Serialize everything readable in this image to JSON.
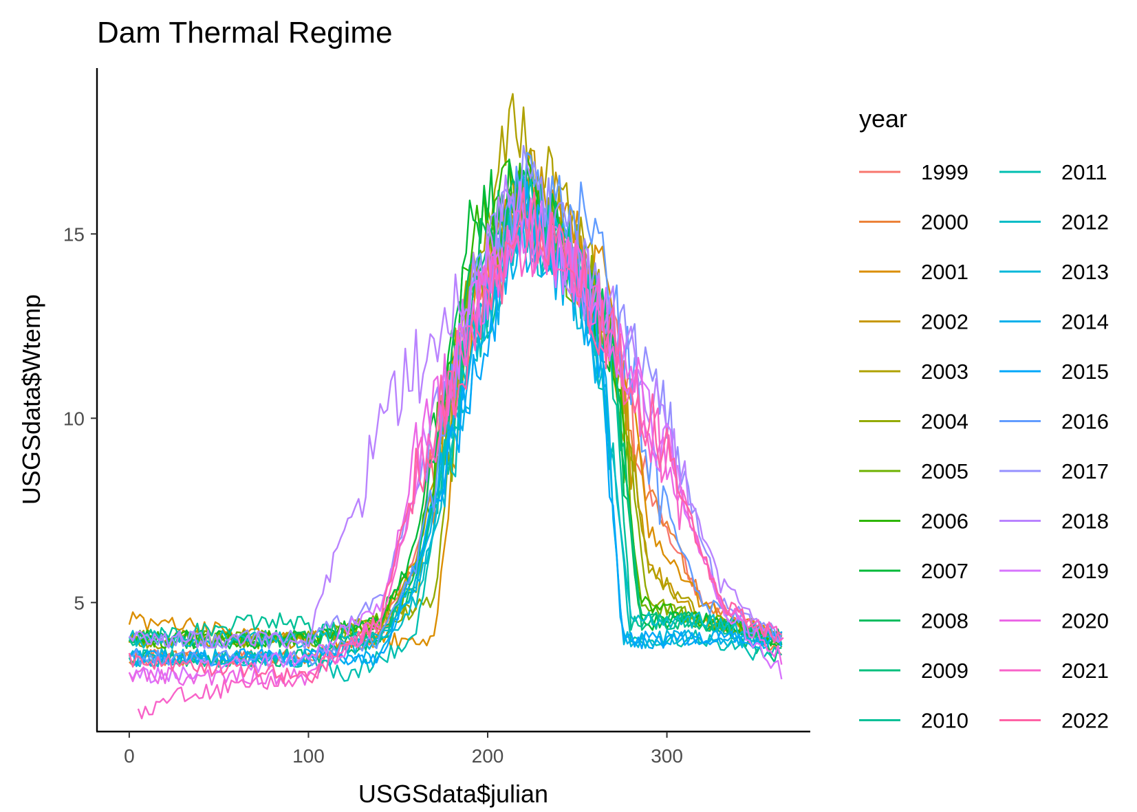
{
  "chart_data": {
    "type": "line",
    "title": "Dam Thermal Regime",
    "xlabel": "USGSdata$julian",
    "ylabel": "USGSdata$Wtemp",
    "xlim": [
      -18,
      380
    ],
    "ylim": [
      1.5,
      19.5
    ],
    "x_ticks": [
      0,
      100,
      200,
      300
    ],
    "y_ticks": [
      5,
      10,
      15
    ],
    "grid": false,
    "legend": {
      "title": "year",
      "placement": "right",
      "columns": 2
    },
    "shape_model": {
      "note_days": [
        0,
        100,
        140,
        160,
        190,
        220,
        250,
        270,
        290,
        340,
        365
      ],
      "note_values": [
        3.5,
        3.5,
        4,
        6,
        13,
        15.5,
        13.5,
        11,
        5,
        4,
        4
      ]
    },
    "series": [
      {
        "name": "1999",
        "color": "#F8766D",
        "x": [
          0,
          100,
          140,
          160,
          190,
          220,
          250,
          270,
          290,
          320,
          365
        ],
        "y": [
          3.5,
          3.5,
          4.0,
          6.5,
          13.0,
          16.0,
          14.0,
          12.0,
          8.0,
          5.0,
          4.0
        ]
      },
      {
        "name": "2000",
        "color": "#EC8239",
        "x": [
          0,
          100,
          140,
          160,
          190,
          220,
          250,
          270,
          290,
          320,
          365
        ],
        "y": [
          3.5,
          3.5,
          4.0,
          6.0,
          12.5,
          15.5,
          14.0,
          12.0,
          8.0,
          5.0,
          3.5
        ]
      },
      {
        "name": "2001",
        "color": "#DB8E00",
        "x": [
          0,
          100,
          140,
          170,
          190,
          220,
          250,
          270,
          290,
          320,
          365
        ],
        "y": [
          4.5,
          4.0,
          4.0,
          4.0,
          12.5,
          16.0,
          15.0,
          13.0,
          7.0,
          5.0,
          4.0
        ]
      },
      {
        "name": "2002",
        "color": "#C79800",
        "x": [
          0,
          100,
          140,
          160,
          190,
          220,
          250,
          270,
          290,
          320,
          365
        ],
        "y": [
          4.0,
          4.0,
          4.5,
          6.0,
          13.5,
          17.0,
          15.0,
          12.0,
          6.0,
          4.5,
          4.0
        ]
      },
      {
        "name": "2003",
        "color": "#AFA100",
        "x": [
          0,
          100,
          140,
          160,
          190,
          215,
          250,
          270,
          290,
          320,
          365
        ],
        "y": [
          4.0,
          4.0,
          4.5,
          5.0,
          14.0,
          18.0,
          15.0,
          12.0,
          6.0,
          4.5,
          4.0
        ]
      },
      {
        "name": "2004",
        "color": "#93AA00",
        "x": [
          0,
          100,
          140,
          170,
          190,
          220,
          250,
          270,
          290,
          320,
          365
        ],
        "y": [
          4.0,
          4.0,
          4.5,
          5.0,
          13.0,
          16.0,
          14.5,
          12.0,
          5.0,
          4.5,
          4.0
        ]
      },
      {
        "name": "2005",
        "color": "#6DB200",
        "x": [
          0,
          100,
          140,
          160,
          190,
          220,
          250,
          270,
          285,
          320,
          365
        ],
        "y": [
          4.0,
          4.0,
          4.5,
          5.5,
          13.5,
          16.0,
          14.0,
          12.0,
          5.0,
          4.5,
          4.0
        ]
      },
      {
        "name": "2006",
        "color": "#2DB600",
        "x": [
          0,
          100,
          140,
          160,
          190,
          215,
          250,
          270,
          285,
          320,
          365
        ],
        "y": [
          4.0,
          4.0,
          4.5,
          6.0,
          14.5,
          16.5,
          14.0,
          12.0,
          5.0,
          4.5,
          4.0
        ]
      },
      {
        "name": "2007",
        "color": "#00BA38",
        "x": [
          0,
          100,
          140,
          160,
          190,
          215,
          250,
          270,
          285,
          320,
          365
        ],
        "y": [
          4.0,
          4.0,
          4.5,
          6.5,
          15.0,
          16.5,
          14.0,
          12.0,
          4.5,
          4.5,
          4.0
        ]
      },
      {
        "name": "2008",
        "color": "#00BD5F",
        "x": [
          0,
          100,
          140,
          160,
          190,
          220,
          250,
          270,
          285,
          320,
          365
        ],
        "y": [
          4.0,
          4.0,
          4.0,
          6.0,
          14.0,
          16.0,
          14.0,
          12.0,
          4.5,
          4.5,
          4.0
        ]
      },
      {
        "name": "2009",
        "color": "#00BF7D",
        "x": [
          0,
          100,
          140,
          160,
          190,
          220,
          250,
          270,
          285,
          320,
          365
        ],
        "y": [
          3.5,
          3.5,
          4.0,
          5.5,
          13.0,
          16.0,
          14.0,
          12.0,
          4.5,
          4.5,
          3.5
        ]
      },
      {
        "name": "2010",
        "color": "#00C097",
        "x": [
          0,
          80,
          140,
          160,
          190,
          220,
          250,
          270,
          280,
          320,
          365
        ],
        "y": [
          4.0,
          4.5,
          4.0,
          5.5,
          12.0,
          15.5,
          14.0,
          11.5,
          4.5,
          4.5,
          4.0
        ]
      },
      {
        "name": "2011",
        "color": "#00BFB0",
        "x": [
          0,
          100,
          120,
          160,
          180,
          220,
          250,
          265,
          280,
          320,
          365
        ],
        "y": [
          3.5,
          3.5,
          3.0,
          4.0,
          10.0,
          16.0,
          14.0,
          11.0,
          4.0,
          4.0,
          3.5
        ]
      },
      {
        "name": "2012",
        "color": "#00BCC6",
        "x": [
          0,
          100,
          140,
          160,
          190,
          220,
          250,
          265,
          280,
          320,
          365
        ],
        "y": [
          4.0,
          4.0,
          4.0,
          5.0,
          11.0,
          15.0,
          14.0,
          11.0,
          4.5,
          4.5,
          4.0
        ]
      },
      {
        "name": "2013",
        "color": "#00B7D9",
        "x": [
          0,
          100,
          140,
          165,
          190,
          220,
          250,
          265,
          275,
          320,
          365
        ],
        "y": [
          3.5,
          3.5,
          4.0,
          6.0,
          12.0,
          16.0,
          13.5,
          11.0,
          4.0,
          4.0,
          4.0
        ]
      },
      {
        "name": "2014",
        "color": "#00B0EB",
        "x": [
          0,
          100,
          140,
          160,
          190,
          220,
          250,
          265,
          275,
          320,
          365
        ],
        "y": [
          3.5,
          3.5,
          3.5,
          5.5,
          11.5,
          15.0,
          13.5,
          11.0,
          4.0,
          4.0,
          4.0
        ]
      },
      {
        "name": "2015",
        "color": "#00A7FA",
        "x": [
          0,
          100,
          140,
          160,
          190,
          220,
          250,
          265,
          275,
          320,
          365
        ],
        "y": [
          3.5,
          3.5,
          3.5,
          6.0,
          11.0,
          15.5,
          14.0,
          11.0,
          4.0,
          4.0,
          4.0
        ]
      },
      {
        "name": "2016",
        "color": "#619CFF",
        "x": [
          0,
          100,
          140,
          160,
          190,
          220,
          255,
          270,
          290,
          320,
          365
        ],
        "y": [
          3.5,
          3.5,
          4.0,
          6.0,
          13.0,
          16.5,
          15.5,
          13.0,
          9.0,
          5.0,
          4.0
        ]
      },
      {
        "name": "2017",
        "color": "#9590FF",
        "x": [
          0,
          100,
          140,
          160,
          190,
          220,
          250,
          270,
          300,
          330,
          365
        ],
        "y": [
          4.0,
          4.0,
          5.0,
          8.0,
          13.5,
          16.5,
          14.5,
          13.0,
          10.0,
          5.0,
          4.0
        ]
      },
      {
        "name": "2018",
        "color": "#B983FF",
        "x": [
          0,
          100,
          120,
          150,
          180,
          210,
          250,
          270,
          300,
          330,
          365
        ],
        "y": [
          4.0,
          4.0,
          7.0,
          10.5,
          13.0,
          15.5,
          14.0,
          12.5,
          9.5,
          5.5,
          4.0
        ]
      },
      {
        "name": "2019",
        "color": "#D774FD",
        "x": [
          0,
          100,
          140,
          160,
          190,
          220,
          250,
          270,
          300,
          330,
          365
        ],
        "y": [
          3.0,
          3.5,
          5.0,
          8.0,
          13.0,
          15.5,
          14.0,
          12.5,
          9.0,
          5.0,
          3.0
        ]
      },
      {
        "name": "2020",
        "color": "#EB67E6",
        "x": [
          0,
          100,
          140,
          160,
          190,
          220,
          250,
          270,
          300,
          330,
          365
        ],
        "y": [
          3.0,
          3.0,
          4.5,
          9.0,
          12.5,
          15.0,
          14.0,
          12.0,
          9.0,
          5.0,
          3.5
        ]
      },
      {
        "name": "2021",
        "color": "#F863C9",
        "x": [
          5,
          30,
          100,
          140,
          160,
          190,
          220,
          250,
          270,
          300,
          330,
          365
        ],
        "y": [
          2.0,
          2.5,
          3.0,
          4.5,
          8.0,
          12.5,
          15.0,
          14.0,
          12.0,
          9.0,
          5.0,
          4.0
        ]
      },
      {
        "name": "2022",
        "color": "#FF62A5",
        "x": [
          0,
          100,
          140,
          160,
          190,
          220,
          250,
          270,
          300,
          330,
          365
        ],
        "y": [
          3.5,
          3.0,
          4.5,
          8.5,
          12.0,
          15.5,
          14.0,
          12.0,
          9.0,
          5.0,
          4.0
        ]
      }
    ]
  }
}
